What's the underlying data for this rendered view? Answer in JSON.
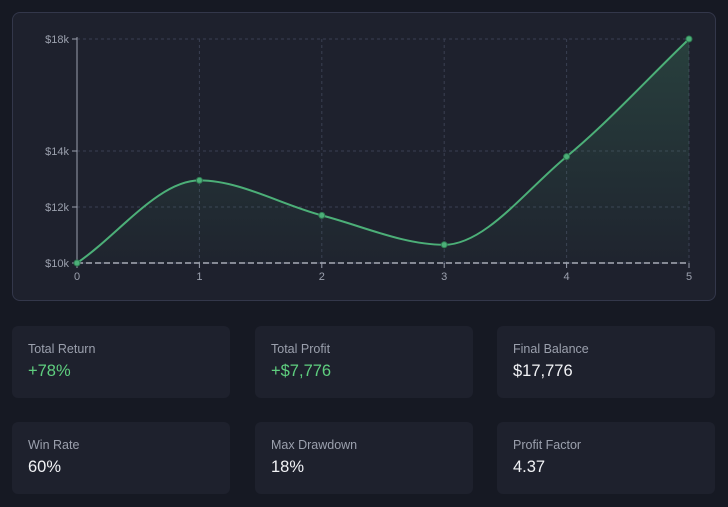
{
  "colors": {
    "background": "#161923",
    "card": "#1e212d",
    "line": "#4caf78",
    "positive": "#5fcf7f",
    "label": "#9ba0ad"
  },
  "chart_data": {
    "type": "area",
    "x": [
      0,
      1,
      2,
      3,
      4,
      5
    ],
    "values": [
      10000,
      12950,
      11700,
      10650,
      13800,
      18000
    ],
    "x_ticks": [
      "0",
      "1",
      "2",
      "3",
      "4",
      "5"
    ],
    "y_ticks": [
      {
        "value": 10000,
        "label": "$10k"
      },
      {
        "value": 12000,
        "label": "$12k"
      },
      {
        "value": 14000,
        "label": "$14k"
      },
      {
        "value": 18000,
        "label": "$18k"
      }
    ],
    "xlim": [
      0,
      5
    ],
    "ylim": [
      10000,
      18000
    ],
    "grid": true,
    "smooth": true
  },
  "stats": [
    {
      "label": "Total Return",
      "value": "+78%",
      "positive": true
    },
    {
      "label": "Total Profit",
      "value": "+$7,776",
      "positive": true
    },
    {
      "label": "Final Balance",
      "value": "$17,776",
      "positive": false
    },
    {
      "label": "Win Rate",
      "value": "60%",
      "positive": false
    },
    {
      "label": "Max Drawdown",
      "value": "18%",
      "positive": false
    },
    {
      "label": "Profit Factor",
      "value": "4.37",
      "positive": false
    }
  ]
}
